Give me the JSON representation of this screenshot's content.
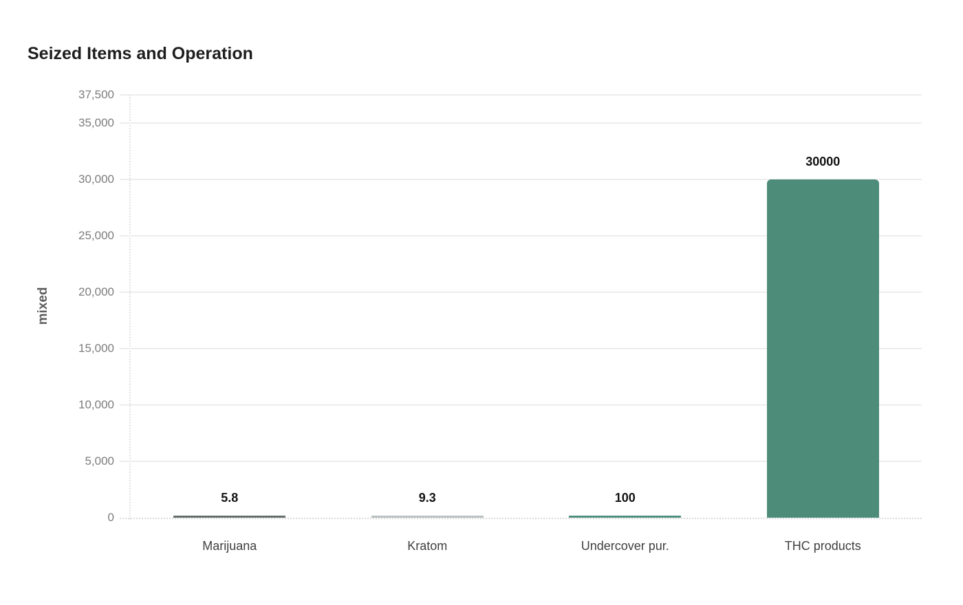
{
  "chart_data": {
    "type": "bar",
    "title": "Seized Items and Operation",
    "xlabel": "",
    "ylabel": "mixed",
    "categories": [
      "Marijuana",
      "Kratom",
      "Undercover pur.",
      "THC products"
    ],
    "values": [
      5.8,
      9.3,
      100,
      30000
    ],
    "value_labels": [
      "5.8",
      "9.3",
      "100",
      "30000"
    ],
    "bar_colors": [
      "#636d6b",
      "#b9c0c2",
      "#4f8f7d",
      "#4e8c7a"
    ],
    "ylim": [
      0,
      37500
    ],
    "yticks": [
      0,
      5000,
      10000,
      15000,
      20000,
      25000,
      30000,
      35000,
      37500
    ],
    "ytick_labels": [
      "0",
      "5,000",
      "10,000",
      "15,000",
      "20,000",
      "25,000",
      "30,000",
      "35,000",
      "37,500"
    ],
    "grid": "horizontal-solid, zero-line-dotted, left-axis-dotted",
    "legend": "none",
    "background_color": "#ffffff"
  }
}
